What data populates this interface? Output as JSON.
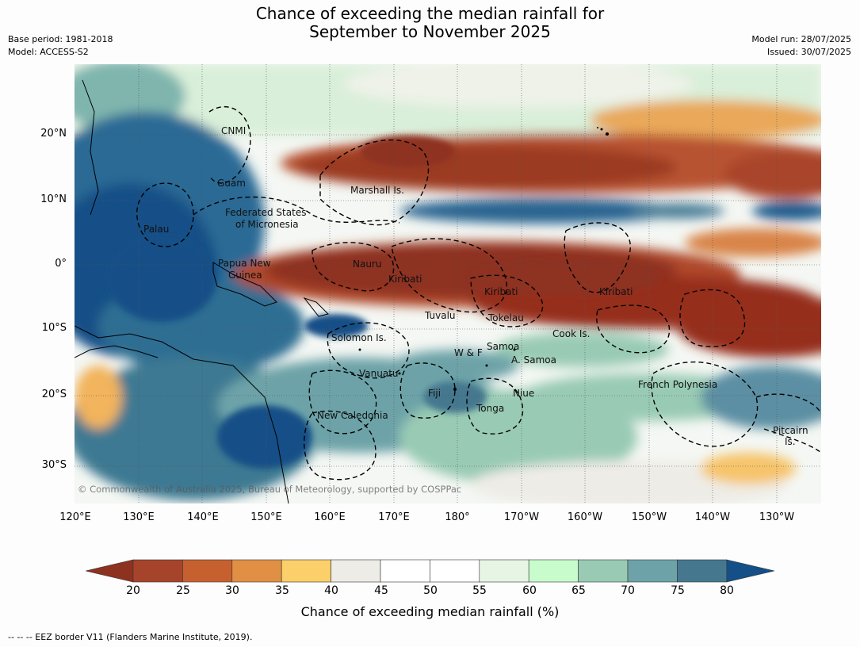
{
  "title_line1": "Chance of exceeding the median rainfall for",
  "title_line2": "September to November 2025",
  "meta": {
    "base_period": "Base period: 1981-2018",
    "model": "Model: ACCESS-S2",
    "model_run": "Model run: 28/07/2025",
    "issued": "Issued: 30/07/2025"
  },
  "lat_labels": [
    "20°N",
    "10°N",
    "0°",
    "10°S",
    "20°S",
    "30°S"
  ],
  "lon_labels": [
    "120°E",
    "130°E",
    "140°E",
    "150°E",
    "160°E",
    "170°E",
    "180°",
    "170°W",
    "160°W",
    "150°W",
    "140°W",
    "130°W"
  ],
  "places": {
    "cnmi": "CNMI",
    "guam": "Guam",
    "palau": "Palau",
    "fsm_1": "Federated States",
    "fsm_2": "of Micronesia",
    "marshall": "Marshall Is.",
    "png_1": "Papua New",
    "png_2": "Guinea",
    "nauru": "Nauru",
    "kiribati_w": "Kiribati",
    "kiribati_c": "Kiribati",
    "kiribati_e": "Kiribati",
    "tuvalu": "Tuvalu",
    "tokelau": "Tokelau",
    "solomon": "Solomon Is.",
    "cook": "Cook Is.",
    "samoa": "Samoa",
    "wf": "W & F",
    "asamoa": "A. Samoa",
    "vanuatu": "Vanuatu",
    "fiji": "Fiji",
    "niue": "Niue",
    "tonga": "Tonga",
    "newcal": "New Caledonia",
    "frpoly": "French Polynesia",
    "pitcairn_1": "Pitcairn",
    "pitcairn_2": "Is."
  },
  "copyright": "© Commonwealth of Australia 2025, Bureau of Meteorology, supported by COSPPac",
  "colorbar": {
    "ticks": [
      "20",
      "25",
      "30",
      "35",
      "40",
      "45",
      "50",
      "55",
      "60",
      "65",
      "70",
      "75",
      "80"
    ],
    "colors": [
      "#a6442b",
      "#c6612f",
      "#e08f45",
      "#fbcf6a",
      "#eeece6",
      "#ffffff",
      "#ffffff",
      "#e7f6e4",
      "#c8fccc",
      "#99cbb4",
      "#6da3a8",
      "#45788f"
    ],
    "under_color": "#8e3220",
    "over_color": "#144f87",
    "title": "Chance of exceeding median rainfall (%)"
  },
  "eez_note": "--  --  -- EEZ border V11 (Flanders Marine Institute, 2019)."
}
